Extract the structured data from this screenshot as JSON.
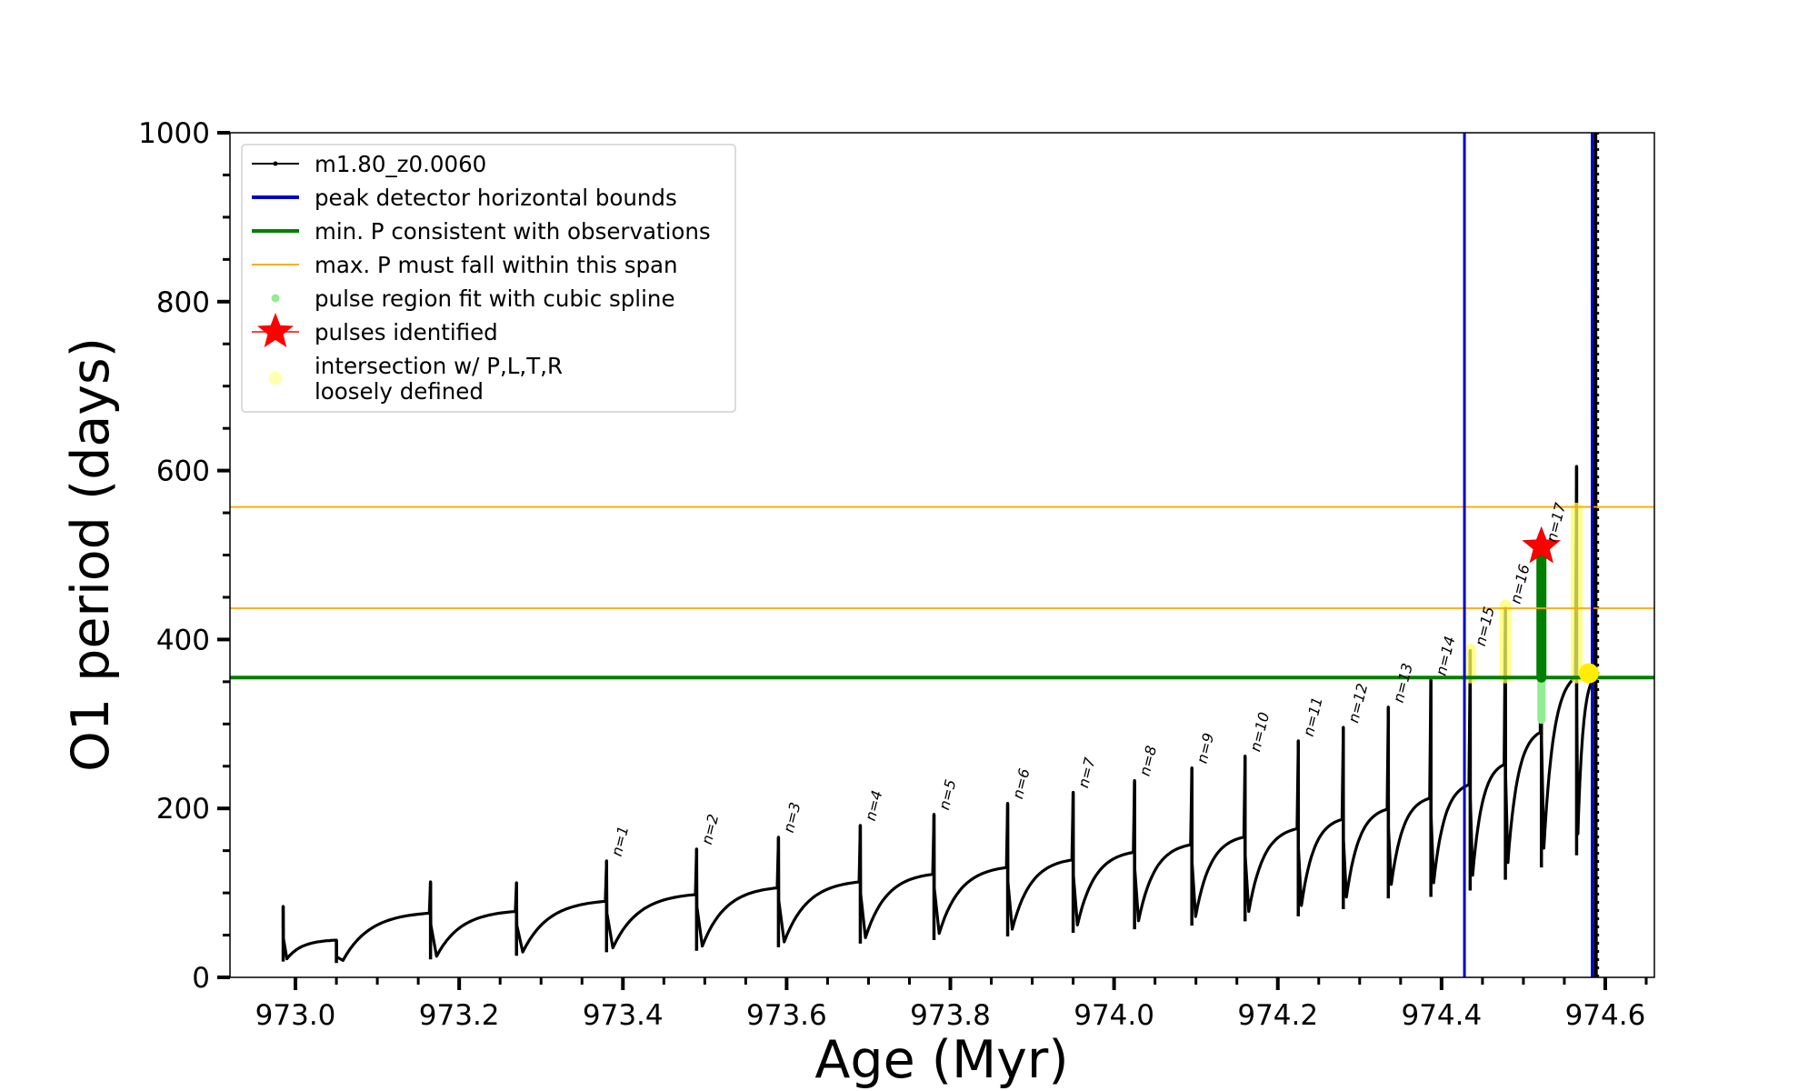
{
  "chart_data": {
    "type": "line",
    "title": "",
    "xlabel": "Age (Myr)",
    "ylabel": "O1 period (days)",
    "xlim": [
      972.92,
      974.66
    ],
    "ylim": [
      0,
      1000
    ],
    "xticks": [
      973.0,
      973.2,
      973.4,
      973.6,
      973.8,
      974.0,
      974.2,
      974.4,
      974.6
    ],
    "xtick_labels": [
      "973.0",
      "973.2",
      "973.4",
      "973.6",
      "973.8",
      "974.0",
      "974.2",
      "974.4",
      "974.6"
    ],
    "yticks": [
      0,
      200,
      400,
      600,
      800,
      1000
    ],
    "ytick_labels": [
      "0",
      "200",
      "400",
      "600",
      "800",
      "1000"
    ],
    "grid": false,
    "legend_position": "top-left",
    "legend": [
      {
        "label": "m1.80_z0.0060",
        "style": "line-dot",
        "color": "#000000"
      },
      {
        "label": "peak detector horizontal bounds",
        "style": "line",
        "color": "#0000cc"
      },
      {
        "label": "min. P consistent with observations",
        "style": "line",
        "color": "#007f00"
      },
      {
        "label": "max. P must fall within this span",
        "style": "thin-line",
        "color": "#ffa500"
      },
      {
        "label": "pulse region fit with cubic spline",
        "style": "dot",
        "color": "#90ee90"
      },
      {
        "label": "pulses identified",
        "style": "star",
        "color": "#ff0000"
      },
      {
        "label": "intersection w/ P,L,T,R",
        "label2": "loosely defined",
        "style": "circle",
        "color": "#ffffb0"
      }
    ],
    "vertical_lines": [
      {
        "x": 974.428,
        "color": "#0000cc",
        "meaning": "peak detector horizontal bounds"
      },
      {
        "x": 974.584,
        "color": "#0000cc",
        "meaning": "peak detector horizontal bounds"
      }
    ],
    "horizontal_lines": [
      {
        "y": 355,
        "color": "#007f00",
        "meaning": "min. P consistent with observations"
      },
      {
        "y": 437,
        "color": "#ffa500",
        "meaning": "max. P must fall within this span"
      },
      {
        "y": 557,
        "color": "#ffa500",
        "meaning": "max. P must fall within this span"
      }
    ],
    "start": {
      "x": 972.985,
      "y": 58
    },
    "cycles": [
      {
        "x": 972.985,
        "peak": 84,
        "min": 22,
        "end": 44,
        "label": ""
      },
      {
        "x": 973.05,
        "peak": 44,
        "min": 20,
        "end": 76,
        "label": ""
      },
      {
        "x": 973.165,
        "peak": 113,
        "min": 25,
        "end": 78,
        "label": ""
      },
      {
        "x": 973.27,
        "peak": 112,
        "min": 30,
        "end": 90,
        "label": ""
      },
      {
        "x": 973.38,
        "peak": 138,
        "min": 35,
        "end": 98,
        "label": "n=1"
      },
      {
        "x": 973.49,
        "peak": 152,
        "min": 37,
        "end": 106,
        "label": "n=2"
      },
      {
        "x": 973.59,
        "peak": 166,
        "min": 42,
        "end": 113,
        "label": "n=3"
      },
      {
        "x": 973.69,
        "peak": 180,
        "min": 47,
        "end": 122,
        "label": "n=4"
      },
      {
        "x": 973.78,
        "peak": 193,
        "min": 52,
        "end": 130,
        "label": "n=5"
      },
      {
        "x": 973.87,
        "peak": 206,
        "min": 57,
        "end": 139,
        "label": "n=6"
      },
      {
        "x": 973.95,
        "peak": 219,
        "min": 62,
        "end": 148,
        "label": "n=7"
      },
      {
        "x": 974.025,
        "peak": 233,
        "min": 67,
        "end": 157,
        "label": "n=8"
      },
      {
        "x": 974.095,
        "peak": 248,
        "min": 72,
        "end": 166,
        "label": "n=9"
      },
      {
        "x": 974.16,
        "peak": 262,
        "min": 78,
        "end": 176,
        "label": "n=10"
      },
      {
        "x": 974.225,
        "peak": 280,
        "min": 85,
        "end": 187,
        "label": "n=11"
      },
      {
        "x": 974.28,
        "peak": 296,
        "min": 95,
        "end": 199,
        "label": "n=12"
      },
      {
        "x": 974.335,
        "peak": 320,
        "min": 110,
        "end": 212,
        "label": "n=13"
      },
      {
        "x": 974.387,
        "peak": 352,
        "min": 112,
        "end": 228,
        "label": "n=14"
      },
      {
        "x": 974.435,
        "peak": 387,
        "min": 121,
        "end": 252,
        "label": "n=15"
      },
      {
        "x": 974.478,
        "peak": 437,
        "min": 136,
        "end": 290,
        "label": "n=16"
      },
      {
        "x": 974.522,
        "peak": 510,
        "min": 153,
        "end": 355,
        "label": "n=17"
      },
      {
        "x": 974.565,
        "peak": 605,
        "min": 170,
        "end": 355,
        "label": ""
      }
    ],
    "pulse_region_spline": [
      {
        "x": 974.522,
        "ymin": 305,
        "ymax": 505,
        "color": "#90ee90"
      }
    ],
    "pulse_region_green": [
      {
        "x": 974.522,
        "ymin": 355,
        "ymax": 505,
        "color": "#007f00"
      }
    ],
    "yellow_regions": [
      {
        "x": 974.435,
        "ymin": 355,
        "ymax": 388
      },
      {
        "x": 974.478,
        "ymin": 355,
        "ymax": 440
      },
      {
        "x": 974.565,
        "ymin": 355,
        "ymax": 555
      }
    ],
    "pulses_identified": [
      {
        "x": 974.522,
        "y": 510
      }
    ],
    "intersection_points": [
      {
        "x": 974.58,
        "y": 360
      }
    ],
    "final_spike": {
      "x": 974.588,
      "ymin": 0,
      "ymax": 1000
    }
  }
}
